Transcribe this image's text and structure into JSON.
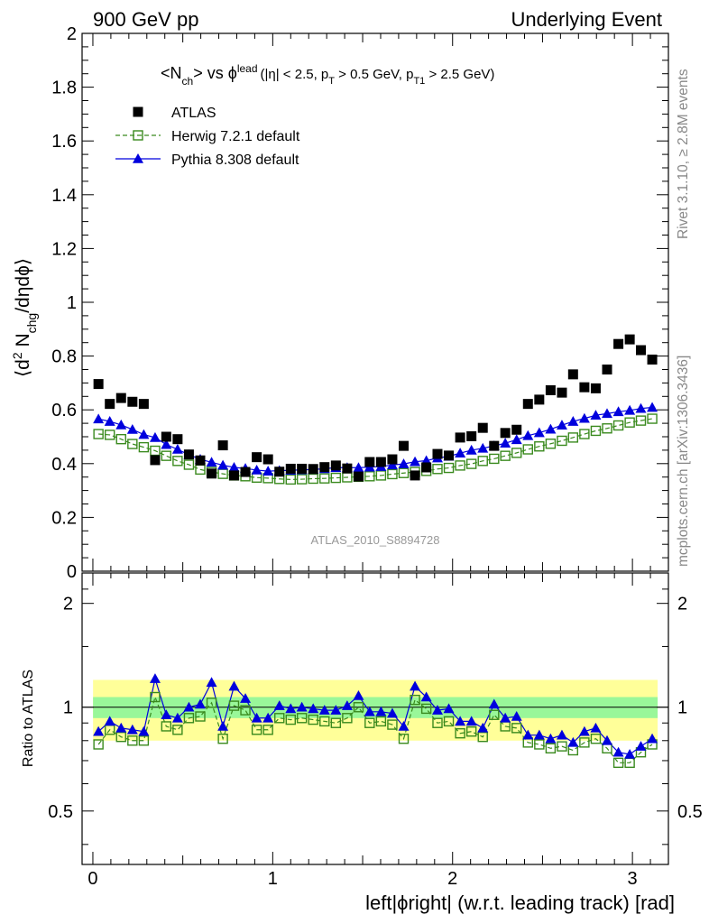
{
  "header": {
    "left": "900 GeV pp",
    "right": "Underlying Event"
  },
  "side": {
    "rivet": "Rivet 3.1.10, ≥ 2.8M events",
    "mcplots": "mcplots.cern.ch [arXiv:1306.3436]"
  },
  "plot": {
    "title_main": "<N",
    "title_sub_ch": "ch",
    "title_vs": "> vs ϕ",
    "title_sup_lead": "lead",
    "title_cuts_1": "(|η| < 2.5, p",
    "title_sub_T": "T",
    "title_cuts_2": " > 0.5 GeV, p",
    "title_sub_T1": "T1",
    "title_cuts_3": " > 2.5 GeV)",
    "watermark": "ATLAS_2010_S8894728",
    "ylabel_pre": "⟨d",
    "ylabel_sup2": "2",
    "ylabel_N": " N",
    "ylabel_sub": "chg",
    "ylabel_post": "/dηdϕ⟩",
    "ratio_ylabel": "Ratio to ATLAS",
    "xlabel": "left|ϕright| (w.r.t. leading track) [rad]"
  },
  "legend": [
    {
      "label": "ATLAS",
      "marker": "square-filled",
      "color": "#000000"
    },
    {
      "label": "Herwig 7.2.1 default",
      "marker": "square-open",
      "color": "#3a8a1e"
    },
    {
      "label": "Pythia 8.308 default",
      "marker": "triangle-filled",
      "color": "#0000dd"
    }
  ],
  "colors": {
    "atlas": "#000000",
    "herwig": "#3a8a1e",
    "pythia": "#0000dd",
    "band_inner": "#99f799",
    "band_outer": "#ffff99"
  },
  "chart_data": [
    {
      "type": "scatter",
      "panel": "main",
      "xlim": [
        -0.06,
        3.2
      ],
      "ylim": [
        0,
        2
      ],
      "yticks": [
        0,
        0.2,
        0.4,
        0.6,
        0.8,
        1,
        1.2,
        1.4,
        1.6,
        1.8,
        2
      ],
      "ytick_labels": [
        "0",
        "0.2",
        "0.4",
        "0.6",
        "0.8",
        "1",
        "1.2",
        "1.4",
        "1.6",
        "1.8",
        "2"
      ],
      "x": [
        0.031,
        0.094,
        0.157,
        0.22,
        0.283,
        0.346,
        0.408,
        0.471,
        0.534,
        0.597,
        0.66,
        0.723,
        0.785,
        0.848,
        0.911,
        0.974,
        1.037,
        1.1,
        1.162,
        1.225,
        1.288,
        1.351,
        1.414,
        1.477,
        1.539,
        1.602,
        1.665,
        1.728,
        1.791,
        1.854,
        1.916,
        1.979,
        2.042,
        2.105,
        2.168,
        2.231,
        2.293,
        2.356,
        2.419,
        2.482,
        2.545,
        2.608,
        2.67,
        2.733,
        2.796,
        2.859,
        2.922,
        2.985,
        3.047,
        3.11
      ],
      "series": [
        {
          "name": "ATLAS",
          "values": [
            0.696,
            0.622,
            0.644,
            0.63,
            0.622,
            0.413,
            0.5,
            0.491,
            0.434,
            0.412,
            0.363,
            0.468,
            0.356,
            0.369,
            0.424,
            0.416,
            0.37,
            0.381,
            0.381,
            0.38,
            0.387,
            0.393,
            0.382,
            0.352,
            0.406,
            0.406,
            0.416,
            0.466,
            0.356,
            0.386,
            0.436,
            0.43,
            0.497,
            0.502,
            0.533,
            0.466,
            0.514,
            0.526,
            0.622,
            0.638,
            0.673,
            0.664,
            0.732,
            0.684,
            0.68,
            0.75,
            0.845,
            0.862,
            0.822,
            0.787
          ]
        },
        {
          "name": "Herwig 7.2.1 default",
          "values": [
            0.51,
            0.507,
            0.491,
            0.473,
            0.461,
            0.448,
            0.429,
            0.41,
            0.396,
            0.378,
            0.369,
            0.362,
            0.356,
            0.353,
            0.348,
            0.346,
            0.343,
            0.341,
            0.342,
            0.344,
            0.345,
            0.347,
            0.349,
            0.351,
            0.353,
            0.356,
            0.361,
            0.365,
            0.369,
            0.373,
            0.38,
            0.384,
            0.393,
            0.399,
            0.41,
            0.418,
            0.429,
            0.44,
            0.453,
            0.464,
            0.474,
            0.485,
            0.497,
            0.51,
            0.522,
            0.531,
            0.542,
            0.553,
            0.56,
            0.567
          ]
        },
        {
          "name": "Pythia 8.308 default",
          "values": [
            0.566,
            0.557,
            0.544,
            0.527,
            0.508,
            0.497,
            0.471,
            0.453,
            0.433,
            0.416,
            0.405,
            0.394,
            0.386,
            0.382,
            0.376,
            0.372,
            0.374,
            0.375,
            0.377,
            0.378,
            0.381,
            0.385,
            0.385,
            0.385,
            0.387,
            0.389,
            0.395,
            0.399,
            0.407,
            0.411,
            0.421,
            0.427,
            0.439,
            0.45,
            0.457,
            0.466,
            0.476,
            0.489,
            0.504,
            0.515,
            0.528,
            0.543,
            0.557,
            0.568,
            0.58,
            0.586,
            0.593,
            0.598,
            0.605,
            0.609
          ]
        }
      ]
    },
    {
      "type": "scatter",
      "panel": "ratio",
      "xlim": [
        -0.06,
        3.2
      ],
      "ylim": [
        0.35,
        2.45
      ],
      "yscale": "log",
      "yticks": [
        0.5,
        1,
        2
      ],
      "ytick_labels": [
        "0.5",
        "1",
        "2"
      ],
      "xticks": [
        0,
        1,
        2,
        3
      ],
      "xtick_labels": [
        "0",
        "1",
        "2",
        "3"
      ],
      "reference": 1,
      "band_inner_halfwidth": 0.07,
      "band_outer_halfwidth": 0.2,
      "series": [
        {
          "name": "Herwig 7.2.1 default",
          "values": [
            0.78,
            0.86,
            0.82,
            0.8,
            0.8,
            1.07,
            0.88,
            0.86,
            0.93,
            0.94,
            1.03,
            0.81,
            1.01,
            0.98,
            0.86,
            0.86,
            0.93,
            0.92,
            0.93,
            0.92,
            0.91,
            0.9,
            0.93,
            1.0,
            0.9,
            0.91,
            0.89,
            0.81,
            1.05,
            0.99,
            0.9,
            0.91,
            0.84,
            0.85,
            0.82,
            0.95,
            0.88,
            0.87,
            0.79,
            0.78,
            0.76,
            0.77,
            0.75,
            0.79,
            0.81,
            0.76,
            0.69,
            0.69,
            0.74,
            0.78
          ]
        },
        {
          "name": "Pythia 8.308 default",
          "values": [
            0.85,
            0.91,
            0.87,
            0.86,
            0.85,
            1.21,
            0.95,
            0.93,
            1.0,
            1.02,
            1.18,
            0.88,
            1.15,
            1.06,
            0.93,
            0.93,
            1.01,
            0.99,
            1.0,
            0.99,
            0.98,
            0.98,
            1.01,
            1.08,
            0.97,
            0.97,
            0.96,
            0.88,
            1.15,
            1.07,
            0.98,
            0.99,
            0.91,
            0.91,
            0.87,
            1.02,
            0.93,
            0.94,
            0.83,
            0.83,
            0.81,
            0.83,
            0.79,
            0.85,
            0.87,
            0.8,
            0.74,
            0.73,
            0.77,
            0.81
          ]
        }
      ]
    }
  ]
}
